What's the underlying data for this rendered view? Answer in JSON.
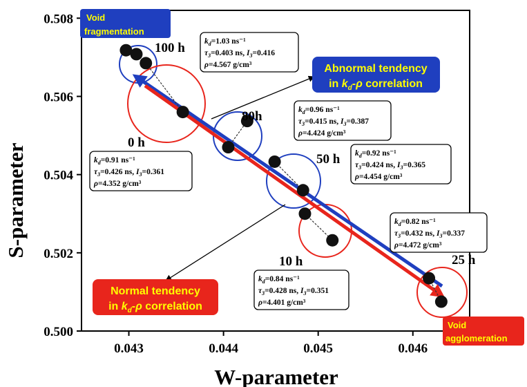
{
  "chart_data": {
    "type": "scatter",
    "xlabel": "W-parameter",
    "ylabel": "S-parameter",
    "xlim": [
      0.0425,
      0.0466
    ],
    "ylim": [
      0.5,
      0.5082
    ],
    "x_ticks": [
      "0.043",
      "0.044",
      "0.045",
      "0.046"
    ],
    "y_ticks": [
      "0.500",
      "0.502",
      "0.504",
      "0.506",
      "0.508"
    ],
    "grid": false,
    "points": [
      {
        "x": 0.04297,
        "y": 0.50718
      },
      {
        "x": 0.04308,
        "y": 0.50708
      },
      {
        "x": 0.04318,
        "y": 0.50685
      },
      {
        "x": 0.04357,
        "y": 0.5056
      },
      {
        "x": 0.04405,
        "y": 0.5047
      },
      {
        "x": 0.04425,
        "y": 0.50537
      },
      {
        "x": 0.04454,
        "y": 0.50433
      },
      {
        "x": 0.04484,
        "y": 0.5036
      },
      {
        "x": 0.04486,
        "y": 0.503
      },
      {
        "x": 0.04515,
        "y": 0.50232
      },
      {
        "x": 0.04617,
        "y": 0.50135
      },
      {
        "x": 0.0463,
        "y": 0.50075
      }
    ],
    "groups": [
      {
        "label": "100 h",
        "lines": [
          {
            "sym": "k",
            "sub": "d",
            "rest": "=1.03 ns⁻¹"
          },
          {
            "sym": "τ",
            "sub": "3",
            "rest": "=0.403 ns, ",
            "sym2": "I",
            "sub2": "3",
            "rest2": "=0.416"
          },
          {
            "sym": "ρ",
            "sub": "",
            "rest": "=4.567 g/cm³"
          }
        ]
      },
      {
        "label": "80h",
        "lines": [
          {
            "sym": "k",
            "sub": "d",
            "rest": "=0.96 ns⁻¹"
          },
          {
            "sym": "τ",
            "sub": "3",
            "rest": "=0.415 ns, ",
            "sym2": "I",
            "sub2": "3",
            "rest2": "=0.387"
          },
          {
            "sym": "ρ",
            "sub": "",
            "rest": "=4.424 g/cm³"
          }
        ]
      },
      {
        "label": "0 h",
        "lines": [
          {
            "sym": "k",
            "sub": "d",
            "rest": "=0.91 ns⁻¹"
          },
          {
            "sym": "τ",
            "sub": "3",
            "rest": "=0.426 ns, ",
            "sym2": "I",
            "sub2": "3",
            "rest2": "=0.361"
          },
          {
            "sym": "ρ",
            "sub": "",
            "rest": "=4.352 g/cm³"
          }
        ]
      },
      {
        "label": "50 h",
        "lines": [
          {
            "sym": "k",
            "sub": "d",
            "rest": "=0.92 ns⁻¹"
          },
          {
            "sym": "τ",
            "sub": "3",
            "rest": "=0.424 ns, ",
            "sym2": "I",
            "sub2": "3",
            "rest2": "=0.365"
          },
          {
            "sym": "ρ",
            "sub": "",
            "rest": "=4.454 g/cm³"
          }
        ]
      },
      {
        "label": "25 h",
        "lines": [
          {
            "sym": "k",
            "sub": "d",
            "rest": "=0.82 ns⁻¹"
          },
          {
            "sym": "τ",
            "sub": "3",
            "rest": "=0.432 ns, ",
            "sym2": "I",
            "sub2": "3",
            "rest2": "=0.337"
          },
          {
            "sym": "ρ",
            "sub": "",
            "rest": "=4.472 g/cm³"
          }
        ]
      },
      {
        "label": "10 h",
        "lines": [
          {
            "sym": "k",
            "sub": "d",
            "rest": "=0.84 ns⁻¹"
          },
          {
            "sym": "τ",
            "sub": "3",
            "rest": "=0.428 ns, ",
            "sym2": "I",
            "sub2": "3",
            "rest2": "=0.351"
          },
          {
            "sym": "ρ",
            "sub": "",
            "rest": "=4.401 g/cm³"
          }
        ]
      }
    ],
    "annotations": {
      "void_fragmentation": [
        "Void",
        "fragmentation"
      ],
      "void_agglomeration": [
        "Void",
        "agglomeration"
      ],
      "abnormal_tendency": {
        "line1": "Abnormal tendency",
        "line2_pre": "in ",
        "k": "k",
        "ksub": "d",
        "dash": "-",
        "rho": "ρ",
        "post": " correlation"
      },
      "normal_tendency": {
        "line1": "Normal tendency",
        "line2_pre": "in ",
        "k": "k",
        "ksub": "d",
        "dash": "-",
        "rho": "ρ",
        "post": " correlation"
      }
    },
    "colors": {
      "blue": "#1f3fbf",
      "red": "#e8251c",
      "yellow": "#ffff00",
      "marker": "#111111"
    }
  }
}
